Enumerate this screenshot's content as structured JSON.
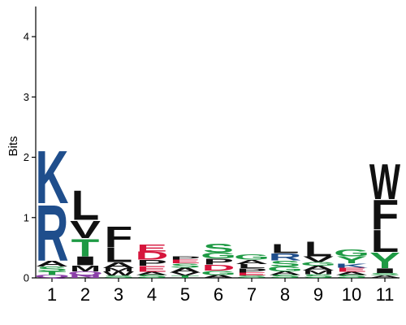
{
  "chart_data": {
    "type": "sequence_logo",
    "ylabel": "Bits",
    "ylim": [
      0,
      4.5
    ],
    "yticks": [
      0,
      1,
      2,
      3,
      4
    ],
    "positions": [
      "1",
      "2",
      "3",
      "4",
      "5",
      "6",
      "7",
      "8",
      "9",
      "10",
      "11"
    ],
    "colors": {
      "K": "#1f4e8c",
      "R": "#1f4e8c",
      "H": "#1f4e8c",
      "D": "#d6153c",
      "E": "#d6153c",
      "S": "#1e9a44",
      "T": "#1e9a44",
      "G": "#1e9a44",
      "Y": "#1e9a44",
      "C": "#1e9a44",
      "Q": "#8b3fa8",
      "N": "#8b3fa8",
      "A": "#111111",
      "V": "#111111",
      "L": "#111111",
      "I": "#111111",
      "P": "#111111",
      "W": "#111111",
      "F": "#111111",
      "M": "#111111"
    },
    "stacks": [
      [
        {
          "r": "Q",
          "h": 0.05
        },
        {
          "r": "T",
          "h": 0.06
        },
        {
          "r": "S",
          "h": 0.08
        },
        {
          "r": "A",
          "h": 0.1
        },
        {
          "r": "R",
          "h": 0.95
        },
        {
          "r": "K",
          "h": 0.9
        }
      ],
      [
        {
          "r": "N",
          "h": 0.05
        },
        {
          "r": "Q",
          "h": 0.06
        },
        {
          "r": "M",
          "h": 0.1
        },
        {
          "r": "I",
          "h": 0.15
        },
        {
          "r": "T",
          "h": 0.3
        },
        {
          "r": "V",
          "h": 0.3
        },
        {
          "r": "L",
          "h": 0.5
        }
      ],
      [
        {
          "r": "S",
          "h": 0.04
        },
        {
          "r": "W",
          "h": 0.07
        },
        {
          "r": "M",
          "h": 0.05
        },
        {
          "r": "A",
          "h": 0.1
        },
        {
          "r": "L",
          "h": 0.25
        },
        {
          "r": "F",
          "h": 0.35
        }
      ],
      [
        {
          "r": "S",
          "h": 0.05
        },
        {
          "r": "A",
          "h": 0.05
        },
        {
          "r": "E",
          "h": 0.1
        },
        {
          "r": "P",
          "h": 0.1
        },
        {
          "r": "D",
          "h": 0.14
        },
        {
          "r": "E",
          "h": 0.12
        }
      ],
      [
        {
          "r": "T",
          "h": 0.04
        },
        {
          "r": "V",
          "h": 0.05
        },
        {
          "r": "A",
          "h": 0.08
        },
        {
          "r": "S",
          "h": 0.07
        },
        {
          "r": "E",
          "h": 0.06
        },
        {
          "r": "P",
          "h": 0.05
        }
      ],
      [
        {
          "r": "A",
          "h": 0.05
        },
        {
          "r": "G",
          "h": 0.07
        },
        {
          "r": "D",
          "h": 0.1
        },
        {
          "r": "P",
          "h": 0.1
        },
        {
          "r": "G",
          "h": 0.1
        },
        {
          "r": "S",
          "h": 0.15
        }
      ],
      [
        {
          "r": "S",
          "h": 0.04
        },
        {
          "r": "E",
          "h": 0.05
        },
        {
          "r": "P",
          "h": 0.07
        },
        {
          "r": "L",
          "h": 0.07
        },
        {
          "r": "A",
          "h": 0.07
        },
        {
          "r": "G",
          "h": 0.09
        }
      ],
      [
        {
          "r": "S",
          "h": 0.05
        },
        {
          "r": "A",
          "h": 0.06
        },
        {
          "r": "G",
          "h": 0.08
        },
        {
          "r": "S",
          "h": 0.1
        },
        {
          "r": "R",
          "h": 0.12
        },
        {
          "r": "L",
          "h": 0.15
        }
      ],
      [
        {
          "r": "S",
          "h": 0.06
        },
        {
          "r": "M",
          "h": 0.06
        },
        {
          "r": "A",
          "h": 0.08
        },
        {
          "r": "G",
          "h": 0.06
        },
        {
          "r": "V",
          "h": 0.1
        },
        {
          "r": "L",
          "h": 0.25
        }
      ],
      [
        {
          "r": "S",
          "h": 0.05
        },
        {
          "r": "A",
          "h": 0.05
        },
        {
          "r": "E",
          "h": 0.07
        },
        {
          "r": "K",
          "h": 0.07
        },
        {
          "r": "Y",
          "h": 0.12
        },
        {
          "r": "G",
          "h": 0.12
        }
      ],
      [
        {
          "r": "A",
          "h": 0.04
        },
        {
          "r": "S",
          "h": 0.04
        },
        {
          "r": "I",
          "h": 0.08
        },
        {
          "r": "Y",
          "h": 0.27
        },
        {
          "r": "L",
          "h": 0.38
        },
        {
          "r": "F",
          "h": 0.5
        },
        {
          "r": "W",
          "h": 0.6
        }
      ]
    ]
  }
}
